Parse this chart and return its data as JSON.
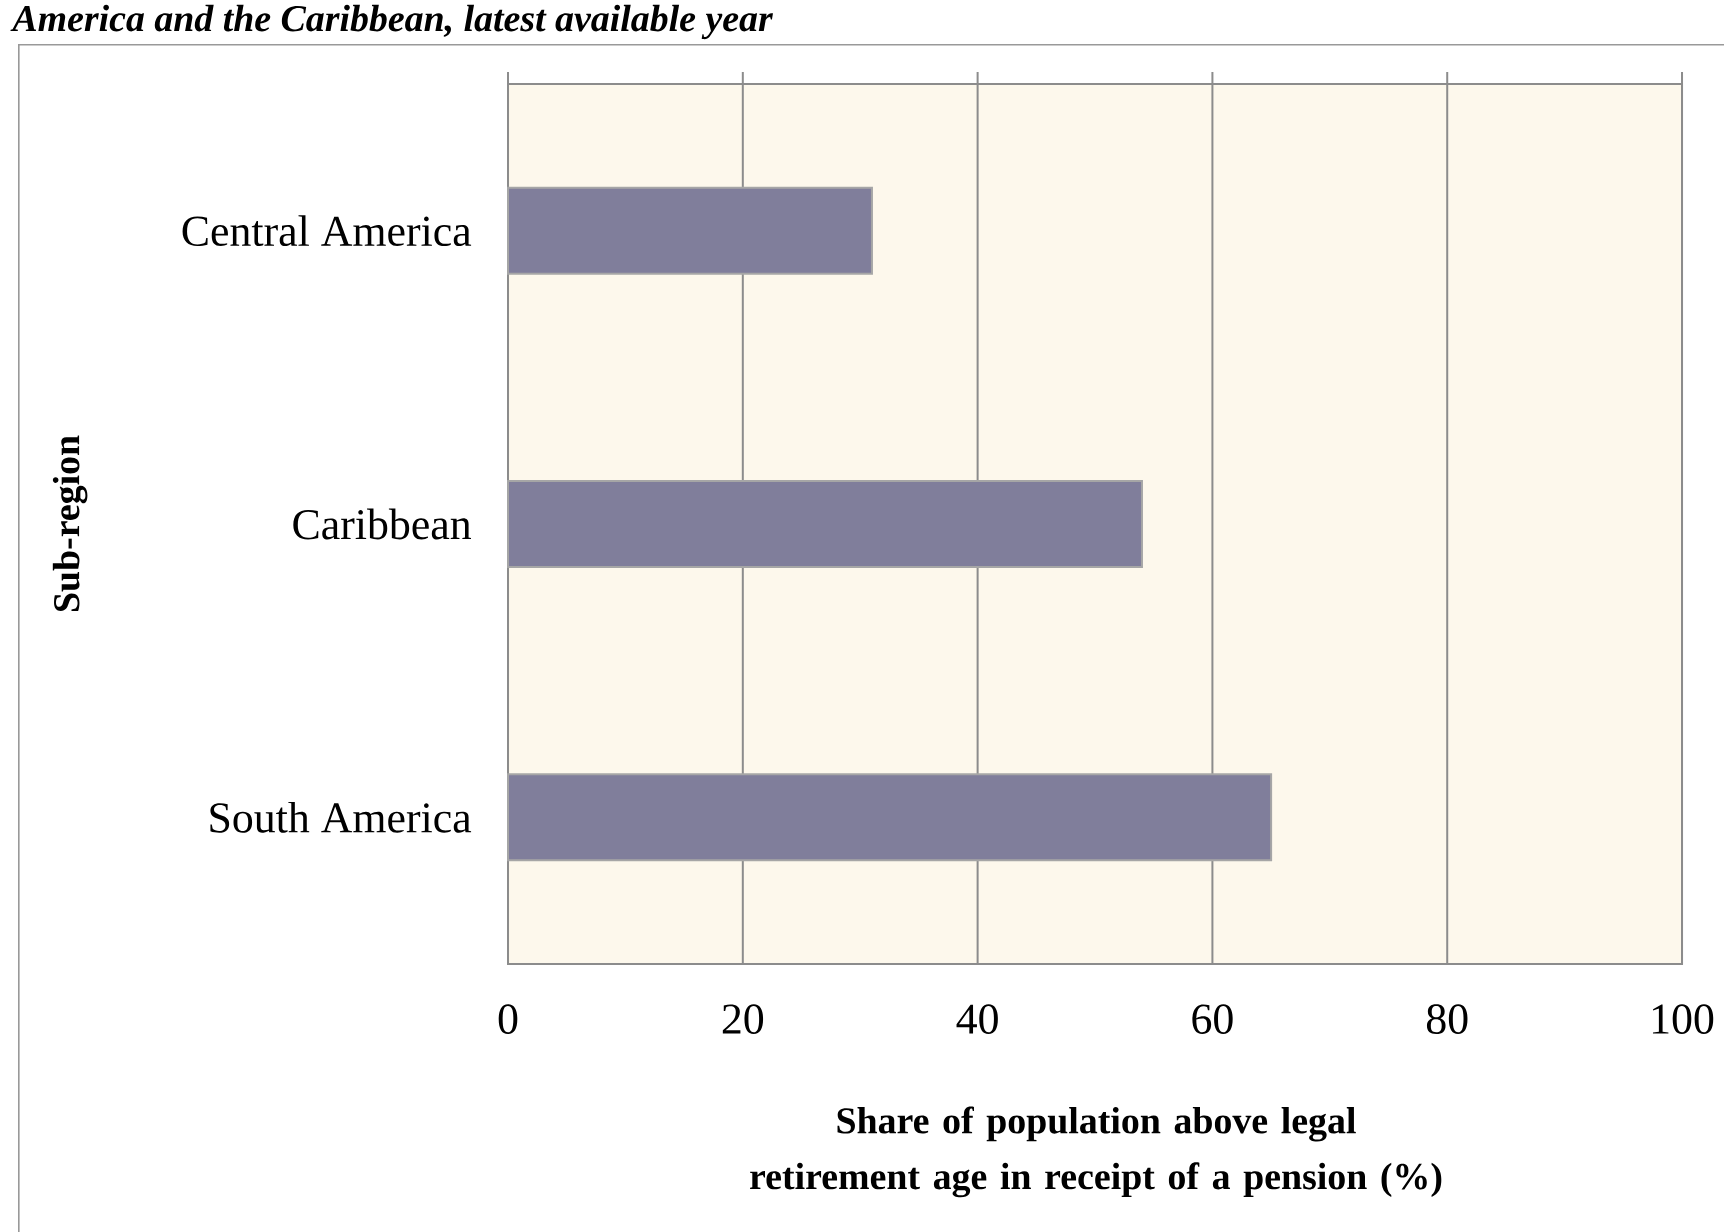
{
  "chart_data": {
    "type": "bar",
    "orientation": "horizontal",
    "title": "America and the Caribbean, latest available year",
    "categories": [
      "Central America",
      "Caribbean",
      "South America"
    ],
    "values": [
      31,
      54,
      65
    ],
    "color": "#807e9b",
    "xlim": [
      0,
      100
    ],
    "xticks": [
      0,
      20,
      40,
      60,
      80,
      100
    ],
    "grid": "x",
    "xlabel": "Share of population above legal retirement age in receipt of a pension (%)",
    "ylabel": "Sub-region"
  }
}
